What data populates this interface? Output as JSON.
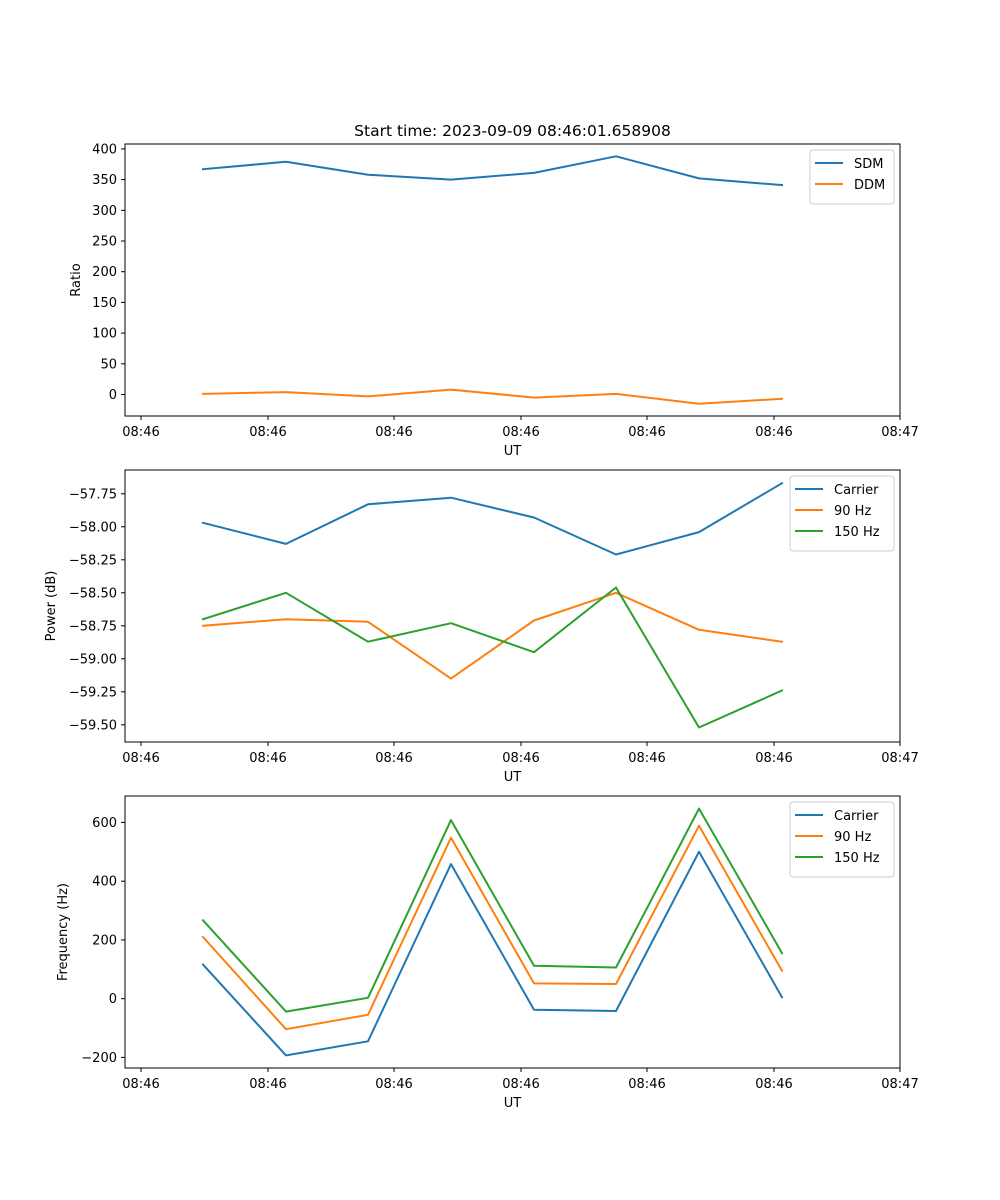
{
  "figure": {
    "title": "Start time: 2023-09-09 08:46:01.658908"
  },
  "chart_data": [
    {
      "type": "line",
      "title": "Start time: 2023-09-09 08:46:01.658908",
      "xlabel": "UT",
      "ylabel": "Ratio",
      "x_tick_labels": [
        "08:46",
        "08:46",
        "08:46",
        "08:46",
        "08:46",
        "08:46",
        "08:47"
      ],
      "y_ticks": [
        0,
        50,
        100,
        150,
        200,
        250,
        300,
        350,
        400
      ],
      "y_tick_labels": [
        "0",
        "50",
        "100",
        "150",
        "200",
        "250",
        "300",
        "350",
        "400"
      ],
      "ylim": [
        -35,
        408
      ],
      "legend_position": "top-right",
      "series": [
        {
          "name": "SDM",
          "color": "#1f77b4",
          "values": [
            367,
            379,
            358,
            350,
            361,
            388,
            352,
            341
          ]
        },
        {
          "name": "DDM",
          "color": "#ff7f0e",
          "values": [
            1,
            4,
            -3,
            8,
            -5,
            1,
            -15,
            -7
          ]
        }
      ]
    },
    {
      "type": "line",
      "title": "",
      "xlabel": "UT",
      "ylabel": "Power (dB)",
      "x_tick_labels": [
        "08:46",
        "08:46",
        "08:46",
        "08:46",
        "08:46",
        "08:46",
        "08:47"
      ],
      "y_ticks": [
        -59.5,
        -59.25,
        -59.0,
        -58.75,
        -58.5,
        -58.25,
        -58.0,
        -57.75
      ],
      "y_tick_labels": [
        "−59.50",
        "−59.25",
        "−59.00",
        "−58.75",
        "−58.50",
        "−58.25",
        "−58.00",
        "−57.75"
      ],
      "ylim": [
        -59.63,
        -57.57
      ],
      "legend_position": "top-right",
      "series": [
        {
          "name": "Carrier",
          "color": "#1f77b4",
          "values": [
            -57.97,
            -58.13,
            -57.83,
            -57.78,
            -57.93,
            -58.21,
            -58.04,
            -57.67
          ]
        },
        {
          "name": "90 Hz",
          "color": "#ff7f0e",
          "values": [
            -58.75,
            -58.7,
            -58.72,
            -59.15,
            -58.71,
            -58.5,
            -58.78,
            -58.87
          ]
        },
        {
          "name": "150 Hz",
          "color": "#2ca02c",
          "values": [
            -58.7,
            -58.5,
            -58.87,
            -58.73,
            -58.95,
            -58.46,
            -59.52,
            -59.24
          ]
        }
      ]
    },
    {
      "type": "line",
      "title": "",
      "xlabel": "UT",
      "ylabel": "Frequency (Hz)",
      "x_tick_labels": [
        "08:46",
        "08:46",
        "08:46",
        "08:46",
        "08:46",
        "08:46",
        "08:47"
      ],
      "y_ticks": [
        -200,
        0,
        200,
        400,
        600
      ],
      "y_tick_labels": [
        "−200",
        "0",
        "200",
        "400",
        "600"
      ],
      "ylim": [
        -236,
        690
      ],
      "legend_position": "top-right",
      "series": [
        {
          "name": "Carrier",
          "color": "#1f77b4",
          "values": [
            116,
            -193,
            -145,
            458,
            -38,
            -42,
            500,
            5
          ]
        },
        {
          "name": "90 Hz",
          "color": "#ff7f0e",
          "values": [
            210,
            -104,
            -55,
            548,
            52,
            50,
            589,
            95
          ]
        },
        {
          "name": "150 Hz",
          "color": "#2ca02c",
          "values": [
            267,
            -44,
            3,
            608,
            112,
            106,
            647,
            155
          ]
        }
      ]
    }
  ]
}
